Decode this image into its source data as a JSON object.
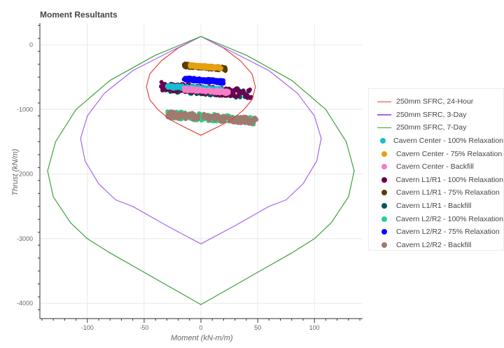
{
  "title": "Moment Resultants",
  "chart_data": {
    "type": "scatter",
    "title": "Moment Resultants",
    "xlabel": "Moment (kN-m/m)",
    "ylabel": "Thrust (kN/m)",
    "xlim": [
      -140,
      143
    ],
    "ylim": [
      -4300,
      330
    ],
    "xticks": [
      -100,
      -50,
      0,
      50,
      100
    ],
    "yticks": [
      0,
      -1000,
      -2000,
      -3000,
      -4000
    ],
    "grid": true,
    "legend_position": "right",
    "lines": [
      {
        "name": "250mm SFRC, 24-Hour",
        "color": "#e0453f",
        "points": [
          [
            0,
            130
          ],
          [
            -20,
            -50
          ],
          [
            -35,
            -250
          ],
          [
            -45,
            -450
          ],
          [
            -48,
            -650
          ],
          [
            -45,
            -850
          ],
          [
            -38,
            -1000
          ],
          [
            -28,
            -1150
          ],
          [
            -15,
            -1270
          ],
          [
            0,
            -1400
          ],
          [
            15,
            -1270
          ],
          [
            28,
            -1150
          ],
          [
            38,
            -1000
          ],
          [
            45,
            -850
          ],
          [
            48,
            -650
          ],
          [
            45,
            -450
          ],
          [
            35,
            -250
          ],
          [
            20,
            -50
          ],
          [
            0,
            130
          ]
        ]
      },
      {
        "name": "250mm SFRC, 3-Day",
        "color": "#a463f2",
        "points": [
          [
            0,
            130
          ],
          [
            -30,
            -130
          ],
          [
            -60,
            -400
          ],
          [
            -85,
            -750
          ],
          [
            -100,
            -1100
          ],
          [
            -106,
            -1450
          ],
          [
            -102,
            -1800
          ],
          [
            -90,
            -2150
          ],
          [
            -75,
            -2400
          ],
          [
            -60,
            -2500
          ],
          [
            -30,
            -2800
          ],
          [
            0,
            -3080
          ],
          [
            30,
            -2800
          ],
          [
            60,
            -2500
          ],
          [
            75,
            -2400
          ],
          [
            90,
            -2150
          ],
          [
            102,
            -1800
          ],
          [
            106,
            -1450
          ],
          [
            100,
            -1100
          ],
          [
            85,
            -750
          ],
          [
            60,
            -400
          ],
          [
            30,
            -130
          ],
          [
            0,
            130
          ]
        ]
      },
      {
        "name": "250mm SFRC, 7-Day",
        "color": "#3aa13a",
        "points": [
          [
            0,
            130
          ],
          [
            -40,
            -160
          ],
          [
            -80,
            -550
          ],
          [
            -110,
            -1000
          ],
          [
            -128,
            -1500
          ],
          [
            -135,
            -1950
          ],
          [
            -130,
            -2350
          ],
          [
            -115,
            -2750
          ],
          [
            -100,
            -3000
          ],
          [
            -80,
            -3220
          ],
          [
            -40,
            -3620
          ],
          [
            0,
            -4020
          ],
          [
            40,
            -3620
          ],
          [
            80,
            -3220
          ],
          [
            100,
            -3000
          ],
          [
            115,
            -2750
          ],
          [
            130,
            -2350
          ],
          [
            135,
            -1950
          ],
          [
            128,
            -1500
          ],
          [
            110,
            -1000
          ],
          [
            80,
            -550
          ],
          [
            40,
            -160
          ],
          [
            0,
            130
          ]
        ]
      }
    ],
    "series": [
      {
        "name": "Cavern Center - 100% Relaxation",
        "color": "#17becf",
        "x_range": [
          -30,
          20
        ],
        "y_range": [
          -720,
          -620
        ]
      },
      {
        "name": "Cavern Center - 75% Relaxation",
        "color": "#e6a00e",
        "x_range": [
          -10,
          18
        ],
        "y_range": [
          -380,
          -300
        ]
      },
      {
        "name": "Cavern Center - Backfill",
        "color": "#f37fc7",
        "x_range": [
          -15,
          25
        ],
        "y_range": [
          -760,
          -660
        ]
      },
      {
        "name": "Cavern L1/R1 - 100% Relaxation",
        "color": "#6a0050",
        "x_range": [
          -35,
          45
        ],
        "y_range": [
          -820,
          -580
        ]
      },
      {
        "name": "Cavern L1/R1 - 75% Relaxation",
        "color": "#5a3d00",
        "x_range": [
          -15,
          22
        ],
        "y_range": [
          -400,
          -290
        ]
      },
      {
        "name": "Cavern L1/R1 - Backfill",
        "color": "#075758",
        "x_range": [
          -33,
          42
        ],
        "y_range": [
          -830,
          -600
        ]
      },
      {
        "name": "Cavern L2/R2 - 100% Relaxation",
        "color": "#22d48b",
        "x_range": [
          -30,
          49
        ],
        "y_range": [
          -1240,
          -1020
        ]
      },
      {
        "name": "Cavern L2/R2 - 75% Relaxation",
        "color": "#0a00ff",
        "x_range": [
          -15,
          20
        ],
        "y_range": [
          -600,
          -500
        ]
      },
      {
        "name": "Cavern L2/R2 - Backfill",
        "color": "#a07a6e",
        "x_range": [
          -30,
          49
        ],
        "y_range": [
          -1230,
          -1030
        ]
      }
    ]
  },
  "legend": {
    "items": [
      {
        "label": "250mm SFRC, 24-Hour",
        "kind": "line",
        "color": "#e0453f"
      },
      {
        "label": "250mm SFRC, 3-Day",
        "kind": "line",
        "color": "#a463f2"
      },
      {
        "label": "250mm SFRC, 7-Day",
        "kind": "line",
        "color": "#3aa13a"
      },
      {
        "label": "Cavern Center - 100% Relaxation",
        "kind": "dot",
        "color": "#17becf"
      },
      {
        "label": "Cavern Center - 75% Relaxation",
        "kind": "dot",
        "color": "#e6a00e"
      },
      {
        "label": "Cavern Center - Backfill",
        "kind": "dot",
        "color": "#f37fc7"
      },
      {
        "label": "Cavern L1/R1 - 100% Relaxation",
        "kind": "dot",
        "color": "#6a0050"
      },
      {
        "label": "Cavern L1/R1 - 75% Relaxation",
        "kind": "dot",
        "color": "#5a3d00"
      },
      {
        "label": "Cavern L1/R1 - Backfill",
        "kind": "dot",
        "color": "#075758"
      },
      {
        "label": "Cavern L2/R2 - 100% Relaxation",
        "kind": "dot",
        "color": "#22d48b"
      },
      {
        "label": "Cavern L2/R2 - 75% Relaxation",
        "kind": "dot",
        "color": "#0a00ff"
      },
      {
        "label": "Cavern L2/R2 - Backfill",
        "kind": "dot",
        "color": "#a07a6e"
      }
    ]
  }
}
